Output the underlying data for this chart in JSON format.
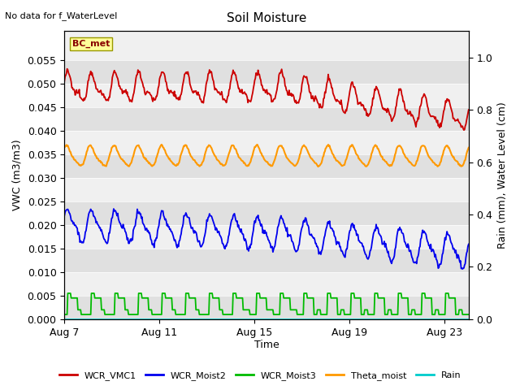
{
  "title": "Soil Moisture",
  "top_left_text": "No data for f_WaterLevel",
  "xlabel": "Time",
  "ylabel_left": "VWC (m3/m3)",
  "ylabel_right": "Rain (mm), Water Level (cm)",
  "bc_met_label": "BC_met",
  "ylim_left": [
    0.0,
    0.0611
  ],
  "ylim_right": [
    0.0,
    1.1
  ],
  "yticks_left": [
    0.0,
    0.005,
    0.01,
    0.015,
    0.02,
    0.025,
    0.03,
    0.035,
    0.04,
    0.045,
    0.05,
    0.055
  ],
  "yticks_right": [
    0.0,
    0.2,
    0.4,
    0.6,
    0.8,
    1.0
  ],
  "xtick_labels": [
    "Aug 7",
    "Aug 11",
    "Aug 15",
    "Aug 19",
    "Aug 23"
  ],
  "xtick_positions": [
    0,
    4,
    8,
    12,
    16
  ],
  "xrange": [
    0,
    17
  ],
  "n_points": 600,
  "colors": {
    "WCR_VMC1": "#cc0000",
    "WCR_Moist2": "#0000ee",
    "WCR_Moist3": "#00bb00",
    "Theta_moist": "#ff9900",
    "Rain": "#00cccc",
    "bg_band_dark": "#e0e0e0",
    "bg_band_light": "#f0f0f0"
  },
  "legend_entries": [
    "WCR_VMC1",
    "WCR_Moist2",
    "WCR_Moist3",
    "Theta_moist",
    "Rain"
  ],
  "legend_colors": [
    "#cc0000",
    "#0000ee",
    "#00bb00",
    "#ff9900",
    "#00cccc"
  ],
  "figure_bg": "#ffffff",
  "title_fontsize": 11,
  "label_fontsize": 9,
  "tick_fontsize": 9
}
